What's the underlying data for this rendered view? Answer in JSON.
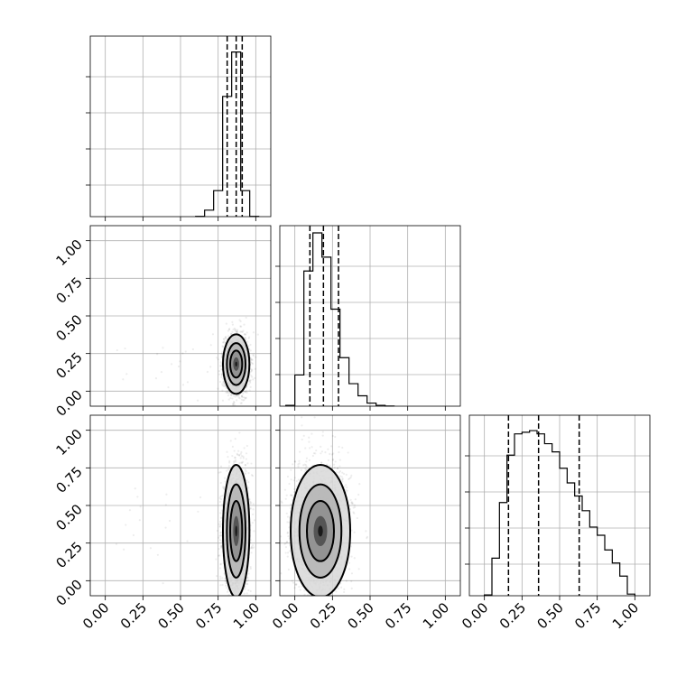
{
  "chart_data": {
    "type": "corner",
    "params": 3,
    "ticks": [
      0.0,
      0.25,
      0.5,
      0.75,
      1.0
    ],
    "tick_labels": [
      "0.00",
      "0.25",
      "0.50",
      "0.75",
      "1.00"
    ],
    "axis_range": [
      -0.1,
      1.1
    ],
    "grid": true,
    "diagonal": [
      {
        "param": 0,
        "bin_edges": [
          0.6,
          0.66,
          0.72,
          0.78,
          0.84,
          0.9,
          0.96,
          1.02
        ],
        "counts": [
          2,
          60,
          240,
          1110,
          1520,
          240,
          2
        ],
        "ymax": 1600,
        "quantiles": [
          0.81,
          0.87,
          0.91
        ]
      },
      {
        "param": 1,
        "bin_edges": [
          -0.06,
          0.0,
          0.06,
          0.12,
          0.18,
          0.24,
          0.3,
          0.36,
          0.42,
          0.48,
          0.54,
          0.6,
          0.66
        ],
        "counts": [
          5,
          180,
          780,
          1000,
          860,
          560,
          280,
          130,
          60,
          18,
          5,
          1
        ],
        "ymax": 1000,
        "quantiles": [
          0.1,
          0.19,
          0.29
        ]
      },
      {
        "param": 2,
        "bin_edges": [
          0.0,
          0.05,
          0.1,
          0.15,
          0.2,
          0.25,
          0.3,
          0.35,
          0.4,
          0.45,
          0.5,
          0.55,
          0.6,
          0.65,
          0.7,
          0.75,
          0.8,
          0.85,
          0.9,
          0.95,
          1.0
        ],
        "counts": [
          5,
          230,
          570,
          860,
          990,
          1000,
          1010,
          990,
          930,
          880,
          780,
          690,
          610,
          520,
          420,
          370,
          280,
          200,
          120,
          10
        ],
        "ymax": 1060,
        "quantiles": [
          0.16,
          0.36,
          0.63
        ]
      }
    ],
    "off_diagonal": [
      {
        "x_param": 0,
        "y_param": 1,
        "center": [
          0.87,
          0.18
        ],
        "sigma": [
          0.04,
          0.09
        ]
      },
      {
        "x_param": 0,
        "y_param": 2,
        "center": [
          0.87,
          0.33
        ],
        "sigma": [
          0.04,
          0.2
        ]
      },
      {
        "x_param": 1,
        "y_param": 2,
        "center": [
          0.17,
          0.33
        ],
        "sigma": [
          0.09,
          0.2
        ]
      }
    ]
  }
}
